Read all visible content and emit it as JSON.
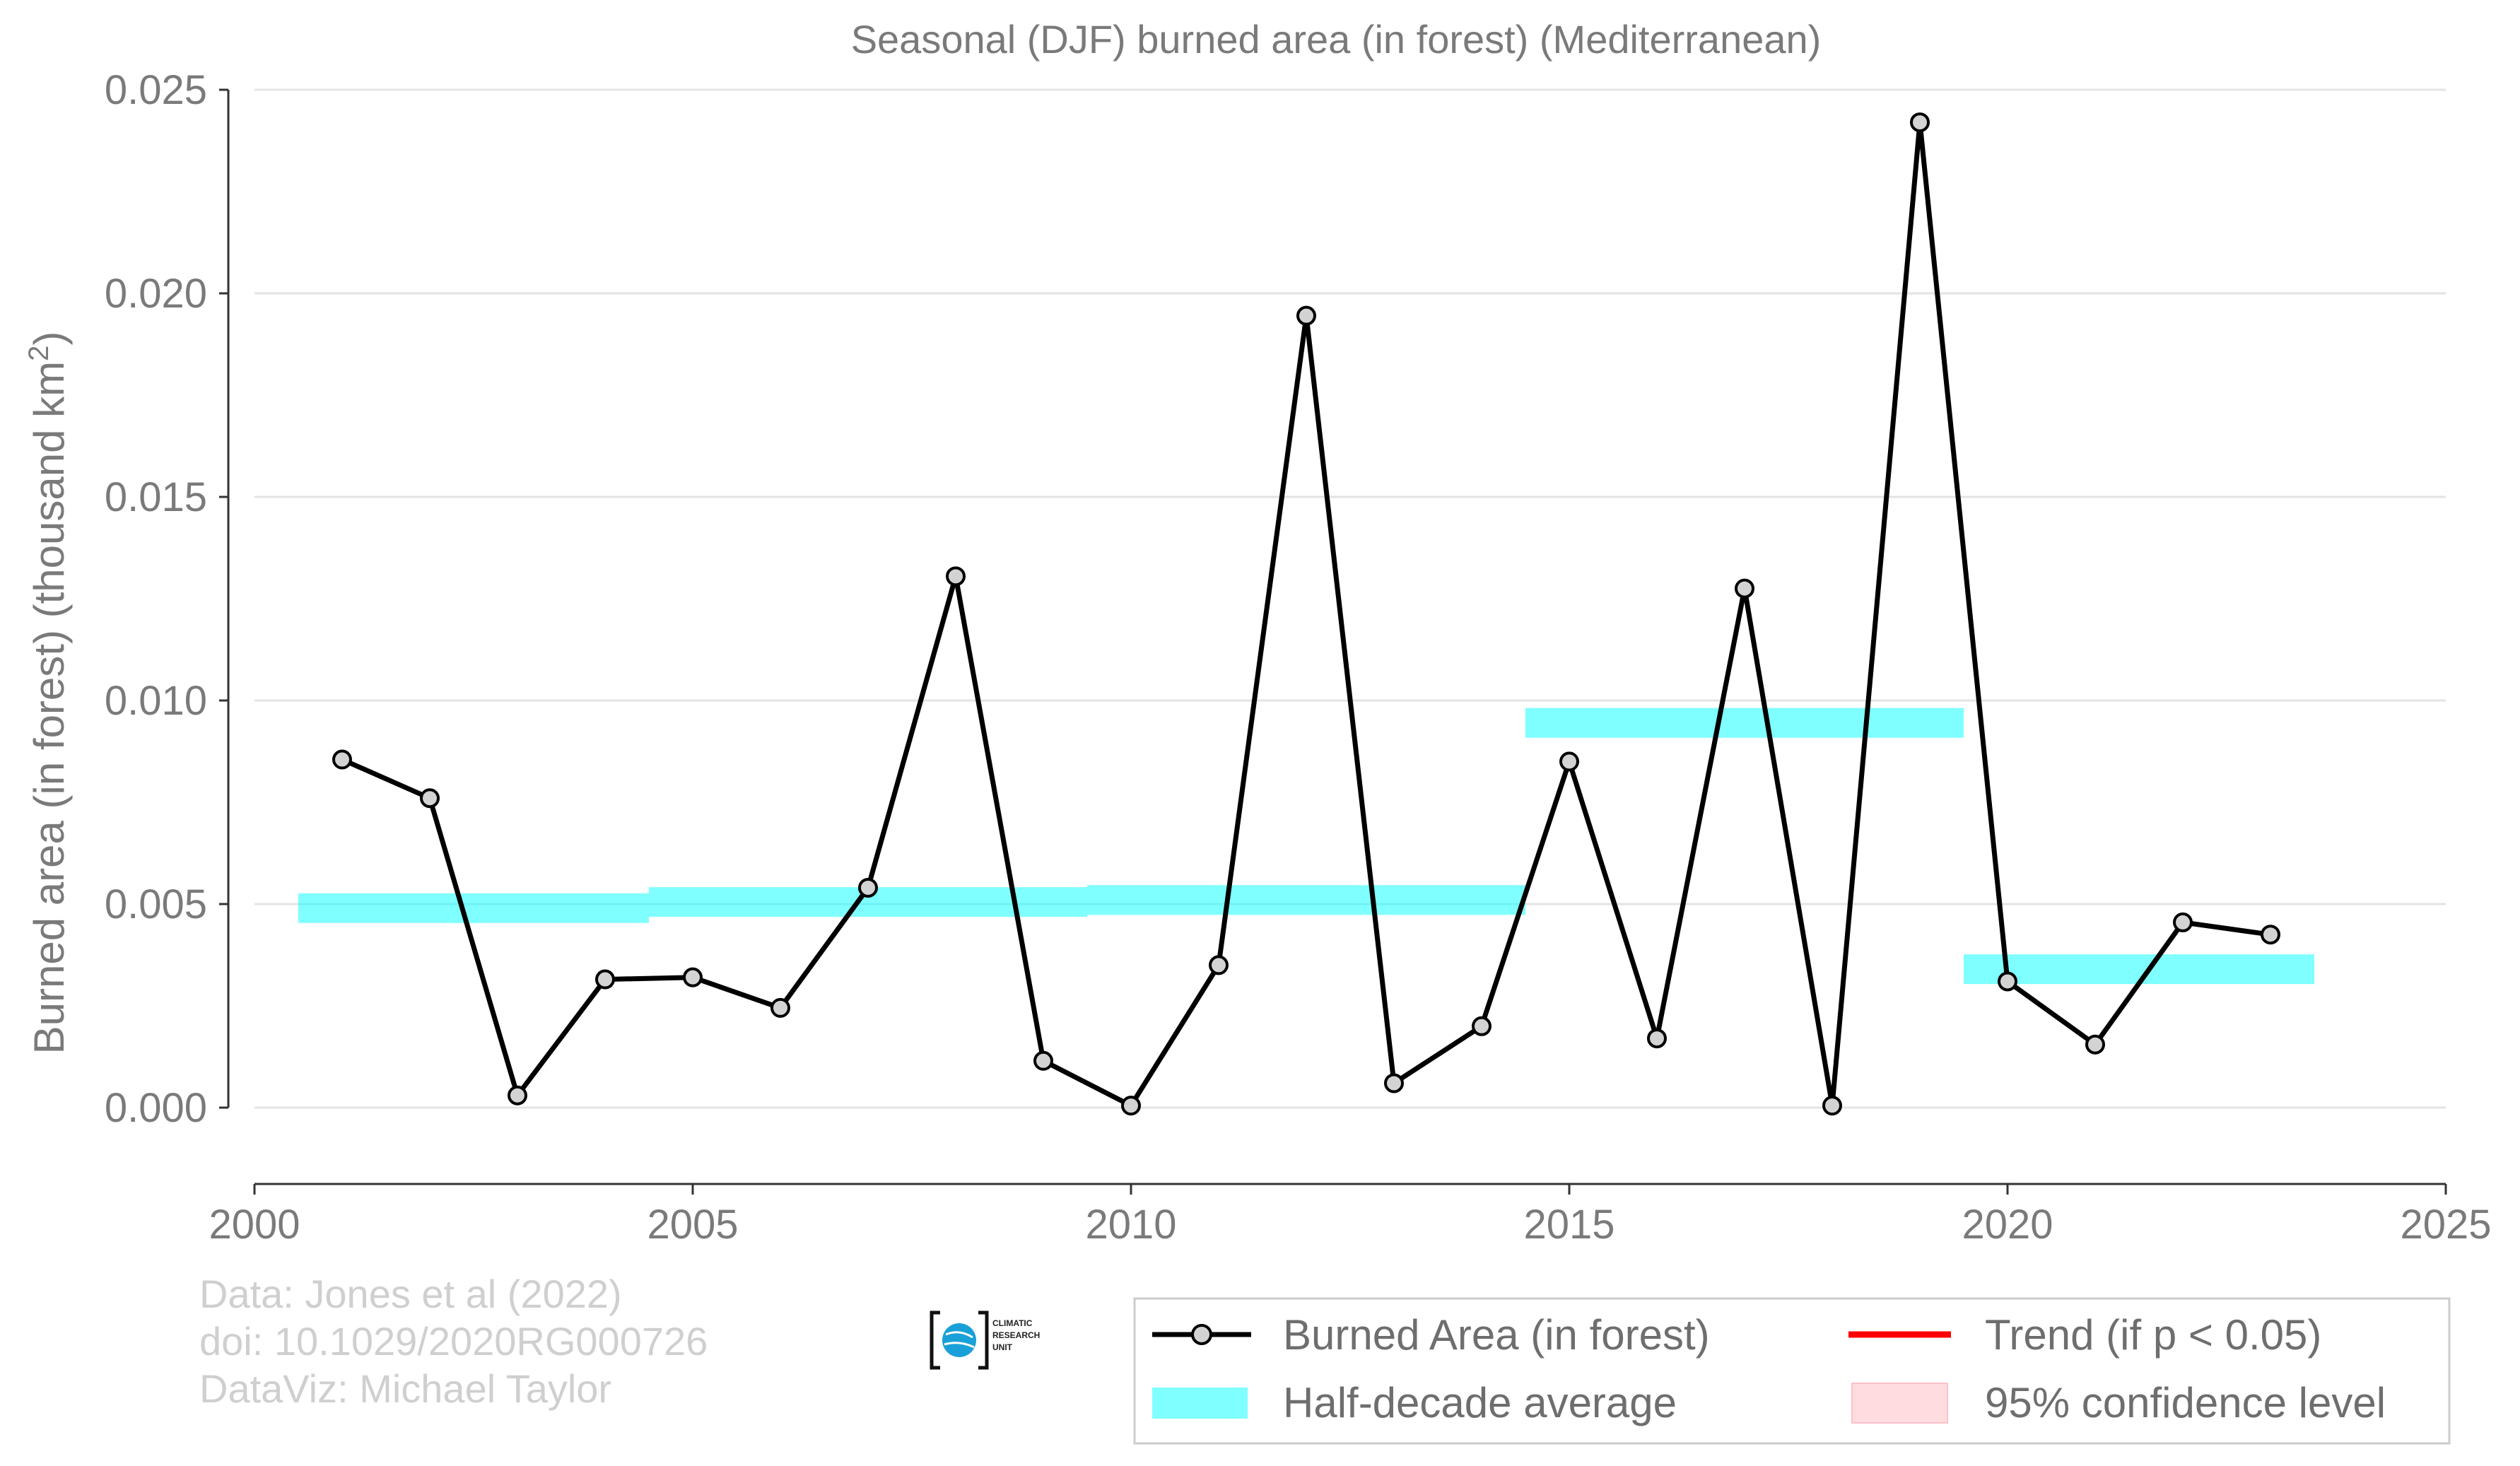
{
  "chart_data": {
    "type": "line",
    "title": "Seasonal (DJF) burned area (in forest) (Mediterranean)",
    "xlabel": "",
    "ylabel": "Burned area (in forest) (thousand km",
    "ylabel_sup": "2",
    "ylabel_close": ")",
    "xlim": [
      2000,
      2025
    ],
    "ylim": [
      -0.0018,
      0.025
    ],
    "xticks": [
      2000,
      2005,
      2010,
      2015,
      2020,
      2025
    ],
    "yticks": [
      0.0,
      0.005,
      0.01,
      0.015,
      0.02,
      0.025
    ],
    "ytick_labels": [
      "0.000",
      "0.005",
      "0.010",
      "0.015",
      "0.020",
      "0.025"
    ],
    "grid": true,
    "series": [
      {
        "name": "Burned Area (in forest)",
        "color": "#000000",
        "marker_fill": "#d3d3d3",
        "x": [
          2001,
          2002,
          2003,
          2004,
          2005,
          2006,
          2007,
          2008,
          2009,
          2010,
          2011,
          2012,
          2013,
          2014,
          2015,
          2016,
          2017,
          2018,
          2019,
          2020,
          2021,
          2022,
          2023
        ],
        "y": [
          0.00855,
          0.0076,
          0.0003,
          0.00315,
          0.0032,
          0.00245,
          0.0054,
          0.01305,
          0.00115,
          5e-05,
          0.0035,
          0.01945,
          0.0006,
          0.002,
          0.0085,
          0.0017,
          0.01275,
          5e-05,
          0.0242,
          0.0031,
          0.00155,
          0.00455,
          0.00425
        ]
      }
    ],
    "half_decade_averages": {
      "name": "Half-decade average",
      "color": "#00ffff",
      "segments": [
        {
          "x_start": 2000.5,
          "x_end": 2004.5,
          "value": 0.0049
        },
        {
          "x_start": 2004.5,
          "x_end": 2009.5,
          "value": 0.00505
        },
        {
          "x_start": 2009.5,
          "x_end": 2014.5,
          "value": 0.0051
        },
        {
          "x_start": 2014.5,
          "x_end": 2019.5,
          "value": 0.00945
        },
        {
          "x_start": 2019.5,
          "x_end": 2023.5,
          "value": 0.0034
        }
      ]
    },
    "legend": {
      "placement": "bottom-right",
      "entries": [
        {
          "label": "Burned Area (in forest)",
          "kind": "line-marker",
          "color": "#000000"
        },
        {
          "label": "Trend (if p < 0.05)",
          "kind": "line",
          "color": "#ff0000"
        },
        {
          "label": "Half-decade average",
          "kind": "band",
          "color": "#00ffff"
        },
        {
          "label": "95% confidence level",
          "kind": "patch",
          "color": "#ffc0c6"
        }
      ]
    }
  },
  "credits": {
    "line1": "Data: Jones et al (2022)",
    "line2": "doi: 10.1029/2020RG000726",
    "line3": "DataViz: Michael Taylor"
  },
  "logo": {
    "line1": "CLIMATIC",
    "line2": "RESEARCH",
    "line3": "UNIT"
  }
}
